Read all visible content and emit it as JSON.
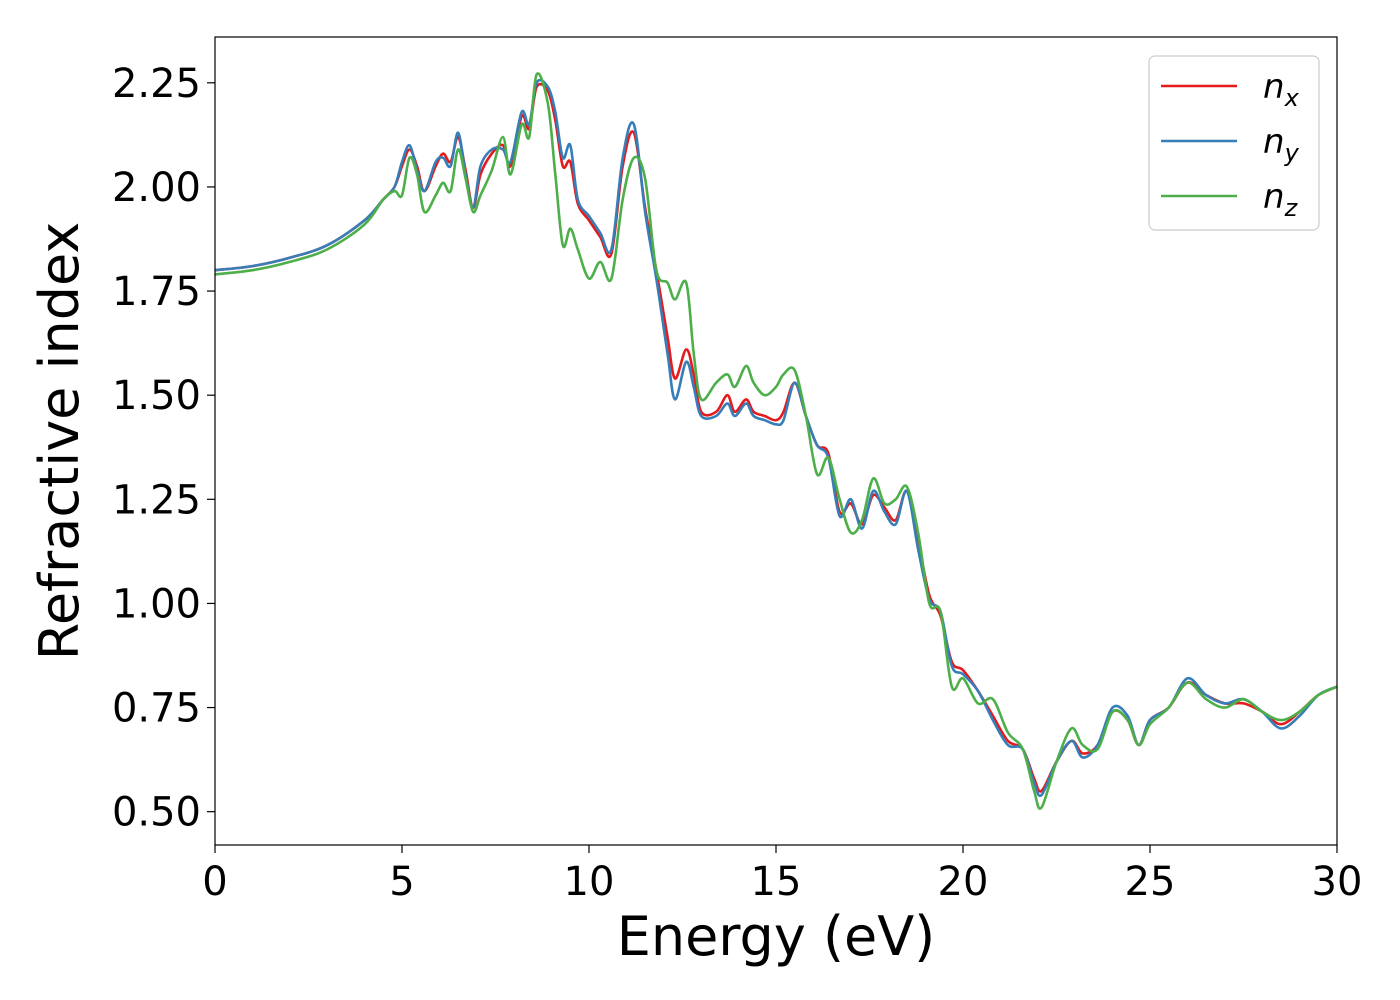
{
  "chart_data": {
    "type": "line",
    "title": "",
    "xlabel": "Energy (eV)",
    "ylabel": "Refractive index",
    "xlim": [
      0,
      30
    ],
    "ylim": [
      0.42,
      2.36
    ],
    "xticks": [
      0,
      5,
      10,
      15,
      20,
      25,
      30
    ],
    "xtick_labels": [
      "0",
      "5",
      "10",
      "15",
      "20",
      "25",
      "30"
    ],
    "yticks": [
      0.5,
      0.75,
      1.0,
      1.25,
      1.5,
      1.75,
      2.0,
      2.25
    ],
    "ytick_labels": [
      "0.50",
      "0.75",
      "1.00",
      "1.25",
      "1.50",
      "1.75",
      "2.00",
      "2.25"
    ],
    "grid": false,
    "legend_position": "top-right",
    "series": [
      {
        "name": "n_x",
        "label_main": "n",
        "label_sub": "x",
        "color": "#e41a1c",
        "points": [
          [
            0,
            1.8
          ],
          [
            1,
            1.81
          ],
          [
            2,
            1.83
          ],
          [
            3,
            1.86
          ],
          [
            4,
            1.92
          ],
          [
            4.5,
            1.97
          ],
          [
            4.8,
            2.0
          ],
          [
            5.0,
            2.05
          ],
          [
            5.2,
            2.09
          ],
          [
            5.4,
            2.05
          ],
          [
            5.6,
            1.99
          ],
          [
            5.9,
            2.05
          ],
          [
            6.1,
            2.08
          ],
          [
            6.3,
            2.06
          ],
          [
            6.5,
            2.12
          ],
          [
            6.7,
            2.04
          ],
          [
            6.9,
            1.95
          ],
          [
            7.1,
            2.03
          ],
          [
            7.4,
            2.08
          ],
          [
            7.7,
            2.1
          ],
          [
            7.9,
            2.05
          ],
          [
            8.2,
            2.17
          ],
          [
            8.4,
            2.14
          ],
          [
            8.6,
            2.24
          ],
          [
            8.9,
            2.23
          ],
          [
            9.1,
            2.16
          ],
          [
            9.3,
            2.05
          ],
          [
            9.5,
            2.06
          ],
          [
            9.7,
            1.96
          ],
          [
            10.0,
            1.92
          ],
          [
            10.3,
            1.88
          ],
          [
            10.6,
            1.84
          ],
          [
            10.9,
            2.05
          ],
          [
            11.2,
            2.13
          ],
          [
            11.5,
            1.95
          ],
          [
            11.8,
            1.8
          ],
          [
            12.1,
            1.64
          ],
          [
            12.3,
            1.54
          ],
          [
            12.6,
            1.61
          ],
          [
            12.8,
            1.55
          ],
          [
            13.0,
            1.46
          ],
          [
            13.4,
            1.46
          ],
          [
            13.7,
            1.5
          ],
          [
            13.9,
            1.46
          ],
          [
            14.2,
            1.49
          ],
          [
            14.4,
            1.46
          ],
          [
            14.7,
            1.45
          ],
          [
            15.0,
            1.44
          ],
          [
            15.2,
            1.46
          ],
          [
            15.5,
            1.53
          ],
          [
            15.8,
            1.45
          ],
          [
            16.1,
            1.38
          ],
          [
            16.4,
            1.36
          ],
          [
            16.7,
            1.22
          ],
          [
            17.0,
            1.24
          ],
          [
            17.3,
            1.19
          ],
          [
            17.6,
            1.26
          ],
          [
            17.9,
            1.23
          ],
          [
            18.2,
            1.2
          ],
          [
            18.5,
            1.27
          ],
          [
            18.8,
            1.15
          ],
          [
            19.1,
            1.02
          ],
          [
            19.4,
            0.97
          ],
          [
            19.7,
            0.86
          ],
          [
            20.0,
            0.84
          ],
          [
            20.4,
            0.79
          ],
          [
            20.8,
            0.73
          ],
          [
            21.2,
            0.67
          ],
          [
            21.6,
            0.65
          ],
          [
            21.9,
            0.58
          ],
          [
            22.1,
            0.55
          ],
          [
            22.5,
            0.62
          ],
          [
            22.9,
            0.67
          ],
          [
            23.2,
            0.64
          ],
          [
            23.6,
            0.66
          ],
          [
            24.0,
            0.74
          ],
          [
            24.4,
            0.72
          ],
          [
            24.7,
            0.66
          ],
          [
            25.0,
            0.72
          ],
          [
            25.5,
            0.75
          ],
          [
            26.0,
            0.81
          ],
          [
            26.5,
            0.78
          ],
          [
            27.0,
            0.76
          ],
          [
            27.5,
            0.76
          ],
          [
            28.0,
            0.74
          ],
          [
            28.5,
            0.71
          ],
          [
            29.0,
            0.74
          ],
          [
            29.5,
            0.78
          ],
          [
            30,
            0.8
          ]
        ]
      },
      {
        "name": "n_y",
        "label_main": "n",
        "label_sub": "y",
        "color": "#377eb8",
        "points": [
          [
            0,
            1.8
          ],
          [
            1,
            1.81
          ],
          [
            2,
            1.83
          ],
          [
            3,
            1.86
          ],
          [
            4,
            1.92
          ],
          [
            4.5,
            1.97
          ],
          [
            4.8,
            2.0
          ],
          [
            5.0,
            2.06
          ],
          [
            5.2,
            2.1
          ],
          [
            5.4,
            2.04
          ],
          [
            5.6,
            1.99
          ],
          [
            5.9,
            2.06
          ],
          [
            6.1,
            2.07
          ],
          [
            6.3,
            2.05
          ],
          [
            6.5,
            2.13
          ],
          [
            6.7,
            2.03
          ],
          [
            6.9,
            1.95
          ],
          [
            7.1,
            2.05
          ],
          [
            7.4,
            2.09
          ],
          [
            7.7,
            2.09
          ],
          [
            7.9,
            2.06
          ],
          [
            8.2,
            2.18
          ],
          [
            8.4,
            2.15
          ],
          [
            8.6,
            2.25
          ],
          [
            8.9,
            2.24
          ],
          [
            9.1,
            2.18
          ],
          [
            9.3,
            2.07
          ],
          [
            9.5,
            2.1
          ],
          [
            9.7,
            1.97
          ],
          [
            10.0,
            1.93
          ],
          [
            10.3,
            1.89
          ],
          [
            10.6,
            1.85
          ],
          [
            10.9,
            2.07
          ],
          [
            11.2,
            2.15
          ],
          [
            11.5,
            1.94
          ],
          [
            11.8,
            1.78
          ],
          [
            12.1,
            1.6
          ],
          [
            12.3,
            1.49
          ],
          [
            12.6,
            1.58
          ],
          [
            12.8,
            1.52
          ],
          [
            13.0,
            1.45
          ],
          [
            13.4,
            1.45
          ],
          [
            13.7,
            1.48
          ],
          [
            13.9,
            1.45
          ],
          [
            14.2,
            1.48
          ],
          [
            14.4,
            1.45
          ],
          [
            14.7,
            1.44
          ],
          [
            15.0,
            1.43
          ],
          [
            15.2,
            1.44
          ],
          [
            15.5,
            1.53
          ],
          [
            15.8,
            1.45
          ],
          [
            16.1,
            1.38
          ],
          [
            16.4,
            1.35
          ],
          [
            16.7,
            1.21
          ],
          [
            17.0,
            1.25
          ],
          [
            17.3,
            1.18
          ],
          [
            17.6,
            1.27
          ],
          [
            17.9,
            1.22
          ],
          [
            18.2,
            1.19
          ],
          [
            18.5,
            1.27
          ],
          [
            18.8,
            1.13
          ],
          [
            19.1,
            1.01
          ],
          [
            19.4,
            0.98
          ],
          [
            19.7,
            0.85
          ],
          [
            20.0,
            0.83
          ],
          [
            20.4,
            0.79
          ],
          [
            20.8,
            0.72
          ],
          [
            21.2,
            0.66
          ],
          [
            21.6,
            0.65
          ],
          [
            21.9,
            0.57
          ],
          [
            22.1,
            0.54
          ],
          [
            22.5,
            0.62
          ],
          [
            22.9,
            0.67
          ],
          [
            23.2,
            0.63
          ],
          [
            23.6,
            0.66
          ],
          [
            24.0,
            0.75
          ],
          [
            24.4,
            0.73
          ],
          [
            24.7,
            0.66
          ],
          [
            25.0,
            0.72
          ],
          [
            25.5,
            0.75
          ],
          [
            26.0,
            0.82
          ],
          [
            26.5,
            0.78
          ],
          [
            27.0,
            0.76
          ],
          [
            27.5,
            0.77
          ],
          [
            28.0,
            0.74
          ],
          [
            28.5,
            0.7
          ],
          [
            29.0,
            0.73
          ],
          [
            29.5,
            0.78
          ],
          [
            30,
            0.8
          ]
        ]
      },
      {
        "name": "n_z",
        "label_main": "n",
        "label_sub": "z",
        "color": "#4daf4a",
        "points": [
          [
            0,
            1.79
          ],
          [
            1,
            1.8
          ],
          [
            2,
            1.82
          ],
          [
            3,
            1.85
          ],
          [
            4,
            1.91
          ],
          [
            4.5,
            1.97
          ],
          [
            4.8,
            1.99
          ],
          [
            5.0,
            1.98
          ],
          [
            5.2,
            2.07
          ],
          [
            5.4,
            2.03
          ],
          [
            5.6,
            1.94
          ],
          [
            5.9,
            1.98
          ],
          [
            6.1,
            2.01
          ],
          [
            6.3,
            1.99
          ],
          [
            6.5,
            2.09
          ],
          [
            6.7,
            2.02
          ],
          [
            6.9,
            1.94
          ],
          [
            7.1,
            1.98
          ],
          [
            7.4,
            2.04
          ],
          [
            7.7,
            2.12
          ],
          [
            7.9,
            2.03
          ],
          [
            8.2,
            2.15
          ],
          [
            8.4,
            2.12
          ],
          [
            8.6,
            2.27
          ],
          [
            8.9,
            2.2
          ],
          [
            9.1,
            2.03
          ],
          [
            9.3,
            1.86
          ],
          [
            9.5,
            1.9
          ],
          [
            9.7,
            1.85
          ],
          [
            10.0,
            1.78
          ],
          [
            10.3,
            1.82
          ],
          [
            10.6,
            1.78
          ],
          [
            10.9,
            1.97
          ],
          [
            11.2,
            2.07
          ],
          [
            11.5,
            2.02
          ],
          [
            11.8,
            1.8
          ],
          [
            12.1,
            1.77
          ],
          [
            12.3,
            1.73
          ],
          [
            12.6,
            1.77
          ],
          [
            12.8,
            1.6
          ],
          [
            13.0,
            1.49
          ],
          [
            13.4,
            1.53
          ],
          [
            13.7,
            1.55
          ],
          [
            13.9,
            1.52
          ],
          [
            14.2,
            1.57
          ],
          [
            14.4,
            1.53
          ],
          [
            14.7,
            1.5
          ],
          [
            15.0,
            1.52
          ],
          [
            15.2,
            1.55
          ],
          [
            15.5,
            1.56
          ],
          [
            15.8,
            1.45
          ],
          [
            16.1,
            1.31
          ],
          [
            16.4,
            1.35
          ],
          [
            16.7,
            1.25
          ],
          [
            17.0,
            1.17
          ],
          [
            17.3,
            1.2
          ],
          [
            17.6,
            1.3
          ],
          [
            17.9,
            1.24
          ],
          [
            18.2,
            1.25
          ],
          [
            18.5,
            1.28
          ],
          [
            18.8,
            1.17
          ],
          [
            19.1,
            1.0
          ],
          [
            19.4,
            0.98
          ],
          [
            19.7,
            0.8
          ],
          [
            20.0,
            0.82
          ],
          [
            20.4,
            0.76
          ],
          [
            20.8,
            0.77
          ],
          [
            21.2,
            0.69
          ],
          [
            21.6,
            0.65
          ],
          [
            21.9,
            0.55
          ],
          [
            22.1,
            0.51
          ],
          [
            22.5,
            0.62
          ],
          [
            22.9,
            0.7
          ],
          [
            23.2,
            0.66
          ],
          [
            23.6,
            0.65
          ],
          [
            24.0,
            0.74
          ],
          [
            24.4,
            0.72
          ],
          [
            24.7,
            0.66
          ],
          [
            25.0,
            0.71
          ],
          [
            25.5,
            0.75
          ],
          [
            26.0,
            0.81
          ],
          [
            26.5,
            0.77
          ],
          [
            27.0,
            0.75
          ],
          [
            27.5,
            0.77
          ],
          [
            28.0,
            0.74
          ],
          [
            28.5,
            0.72
          ],
          [
            29.0,
            0.74
          ],
          [
            29.5,
            0.78
          ],
          [
            30,
            0.8
          ]
        ]
      }
    ]
  }
}
